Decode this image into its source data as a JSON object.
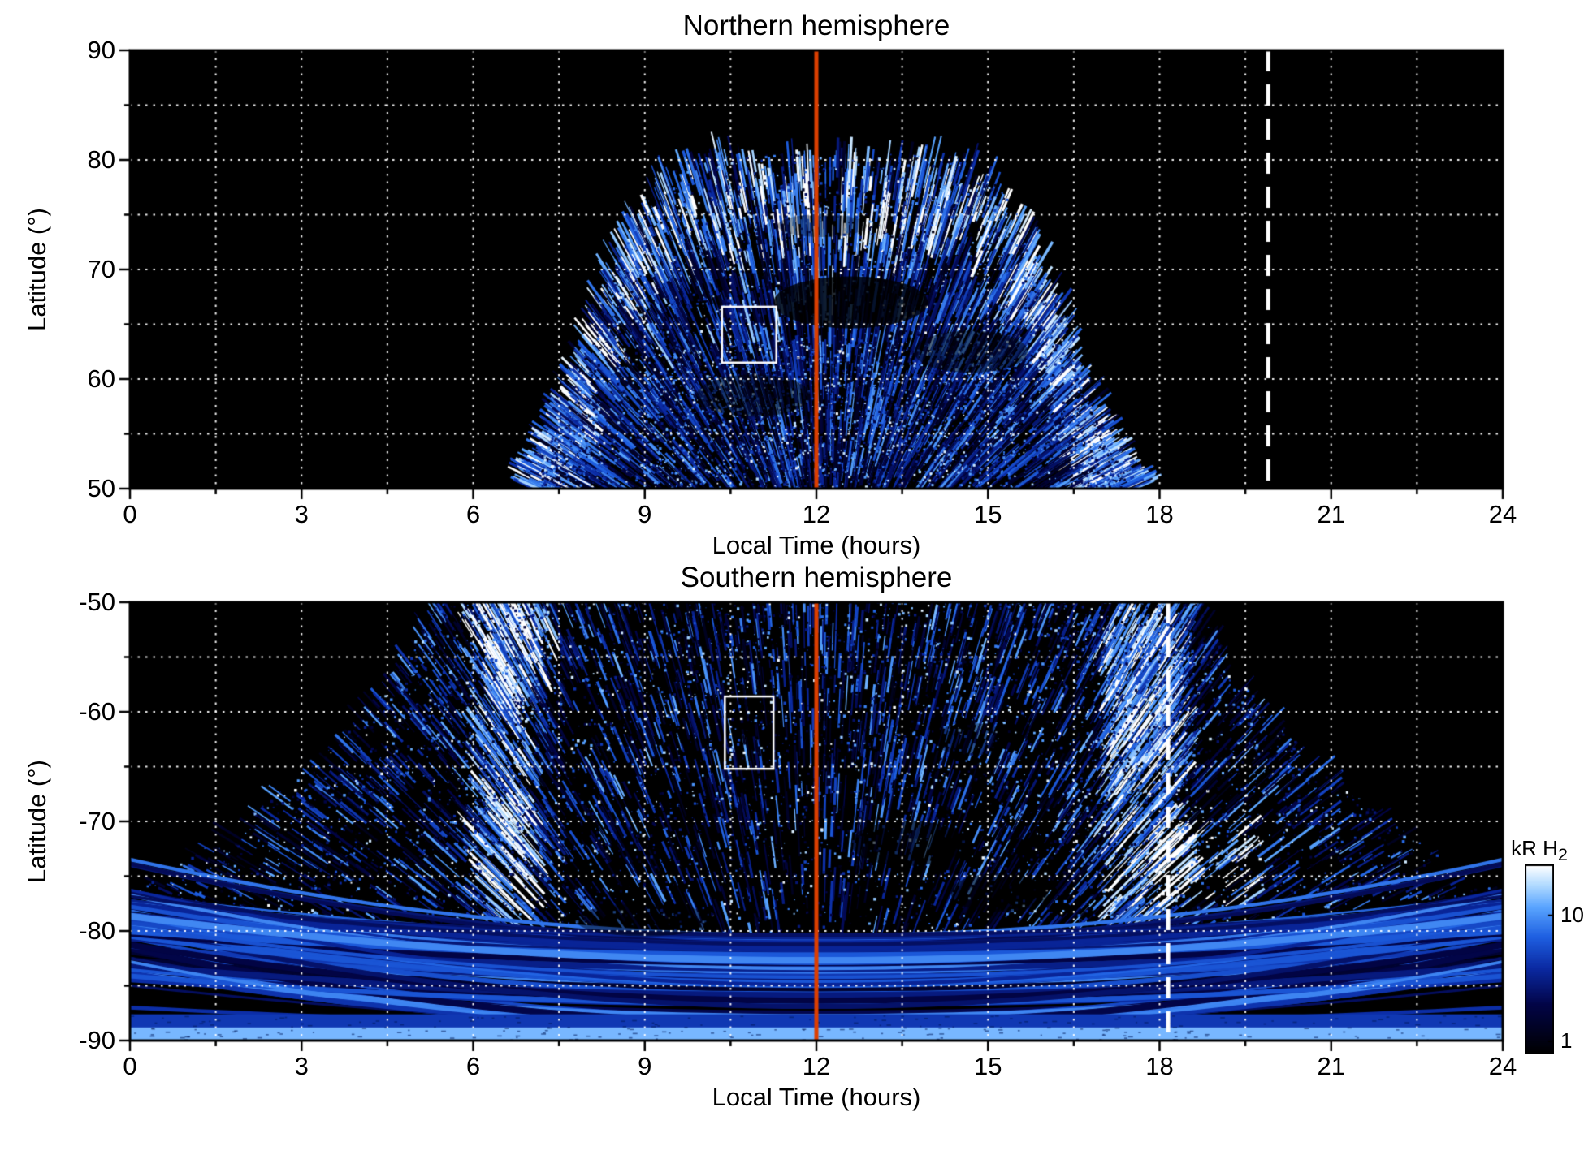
{
  "figure": {
    "background": "#ffffff"
  },
  "chart_data": [
    {
      "type": "heatmap",
      "title": "Northern hemisphere",
      "xlabel": "Local Time (hours)",
      "ylabel": "Latitude (°)",
      "xlim": [
        0,
        24
      ],
      "ylim": [
        50,
        90
      ],
      "xticks": [
        0,
        3,
        6,
        9,
        12,
        15,
        18,
        21,
        24
      ],
      "yticks": [
        90,
        80,
        70,
        60,
        50
      ],
      "x_minor_step": 1.5,
      "y_minor_step": 5,
      "grid": {
        "style": "dotted",
        "color": "#ffffff"
      },
      "background": "#000000",
      "noon_line": {
        "hours": 12,
        "color": "#dd3f00"
      },
      "dashed_line": {
        "hours": 19.9,
        "color": "#ffffff"
      },
      "roi_box": {
        "hours": [
          10.35,
          11.3
        ],
        "lat": [
          61.5,
          66.6
        ],
        "color": "#ffffff"
      },
      "emission": {
        "description": "Streaked H2 auroral emission dome centred near local noon on a black background",
        "local_time_extent": [
          7.2,
          17.2
        ],
        "peak_latitude": 80,
        "brightest_band_latitude": [
          63,
          78
        ]
      }
    },
    {
      "type": "heatmap",
      "title": "Southern hemisphere",
      "xlabel": "Local Time (hours)",
      "ylabel": "Latitude (°)",
      "xlim": [
        0,
        24
      ],
      "ylim": [
        -90,
        -50
      ],
      "xticks": [
        0,
        3,
        6,
        9,
        12,
        15,
        18,
        21,
        24
      ],
      "yticks": [
        -50,
        -60,
        -70,
        -80,
        -90
      ],
      "x_minor_step": 1.5,
      "y_minor_step": 5,
      "grid": {
        "style": "dotted",
        "color": "#ffffff"
      },
      "background": "#000000",
      "noon_line": {
        "hours": 12,
        "color": "#dd3f00"
      },
      "dashed_line": {
        "hours": 18.15,
        "color": "#ffffff"
      },
      "roi_box": {
        "hours": [
          10.4,
          11.25
        ],
        "lat": [
          -65.2,
          -58.6
        ],
        "color": "#ffffff"
      },
      "emission": {
        "description": "Dense speckled H2 emission funnel widening toward the pole, bright dawn and dusk columns, bright patch near 18-19.5 h at -72 to -77 deg, smooth concentric arcs below -80 deg ending in a pale band at -90 deg",
        "local_time_extent_at_minus50": [
          5,
          19
        ],
        "bright_columns_hours": [
          6.6,
          17.7
        ]
      }
    }
  ],
  "colorbar": {
    "label_main": "kR H",
    "label_sub": "2",
    "scale": "log",
    "tick_values": [
      10,
      1
    ],
    "vmax": 25,
    "vmin": 0.8,
    "gradient_top_to_bottom": [
      "#ffffff",
      "#9fd0ff",
      "#2a66e0",
      "#000a50",
      "#000000"
    ]
  }
}
